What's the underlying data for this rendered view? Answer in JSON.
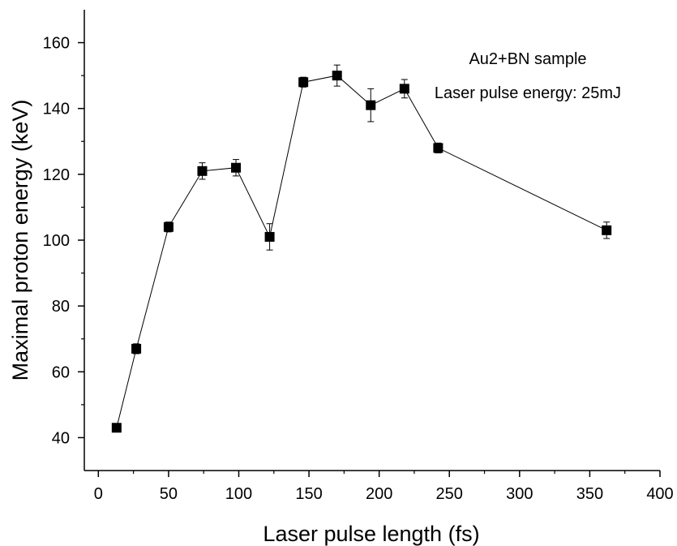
{
  "chart_data": {
    "type": "scatter",
    "xlabel": "Laser pulse length (fs)",
    "ylabel": "Maximal proton energy (keV)",
    "xlim": [
      -10,
      400
    ],
    "ylim": [
      30,
      170
    ],
    "xticks": [
      0,
      50,
      100,
      150,
      200,
      250,
      300,
      350,
      400
    ],
    "yticks": [
      40,
      60,
      80,
      100,
      120,
      140,
      160
    ],
    "xticks_minor_step": 25,
    "yticks_minor_step": 10,
    "grid": false,
    "connect_points": true,
    "marker": "square",
    "annotations": [
      "Au2+BN sample",
      "Laser pulse energy: 25mJ"
    ],
    "series": [
      {
        "x": [
          13,
          27,
          50,
          74,
          98,
          122,
          146,
          170,
          194,
          218,
          242,
          362
        ],
        "y": [
          43,
          67,
          104,
          121,
          122,
          101,
          148,
          150,
          141,
          146,
          128,
          103
        ],
        "err": [
          0.8,
          1.5,
          1.5,
          2.5,
          2.5,
          4,
          1.5,
          3.2,
          5,
          2.8,
          1.5,
          2.5
        ]
      }
    ]
  }
}
